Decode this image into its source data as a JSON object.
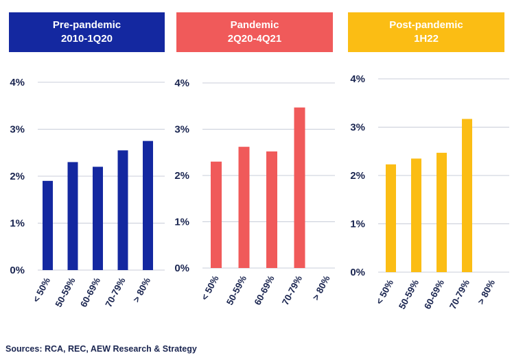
{
  "colors": {
    "text": "#1a2550",
    "grid": "#c8ccd8"
  },
  "source": "Sources: RCA, REC, AEW Research & Strategy",
  "chart_data": [
    {
      "type": "bar",
      "title_lines": [
        "Pre-pandemic",
        "2010-1Q20"
      ],
      "color": "#1428a0",
      "categories": [
        "< 50%",
        "50-59%",
        "60-69%",
        "70-79%",
        "> 80%"
      ],
      "values": [
        1.9,
        2.3,
        2.2,
        2.55,
        2.75
      ],
      "yticks": [
        "0%",
        "1%",
        "2%",
        "3%",
        "4%"
      ],
      "ylim": [
        0,
        4
      ],
      "grid": true
    },
    {
      "type": "bar",
      "title_lines": [
        "Pandemic",
        "2Q20-4Q21"
      ],
      "color": "#f05a5a",
      "categories": [
        "< 50%",
        "50-59%",
        "60-69%",
        "70-79%",
        "> 80%"
      ],
      "values": [
        2.3,
        2.62,
        2.52,
        3.47,
        null
      ],
      "yticks": [
        "0%",
        "1%",
        "2%",
        "3%",
        "4%"
      ],
      "ylim": [
        0,
        4
      ],
      "grid": true
    },
    {
      "type": "bar",
      "title_lines": [
        "Post-pandemic",
        "1H22"
      ],
      "color": "#fbbd14",
      "categories": [
        "< 50%",
        "50-59%",
        "60-69%",
        "70-79%",
        "> 80%"
      ],
      "values": [
        2.23,
        2.35,
        2.47,
        3.17,
        null
      ],
      "yticks": [
        "0%",
        "1%",
        "2%",
        "3%",
        "4%"
      ],
      "ylim": [
        0,
        4
      ],
      "grid": true
    }
  ]
}
